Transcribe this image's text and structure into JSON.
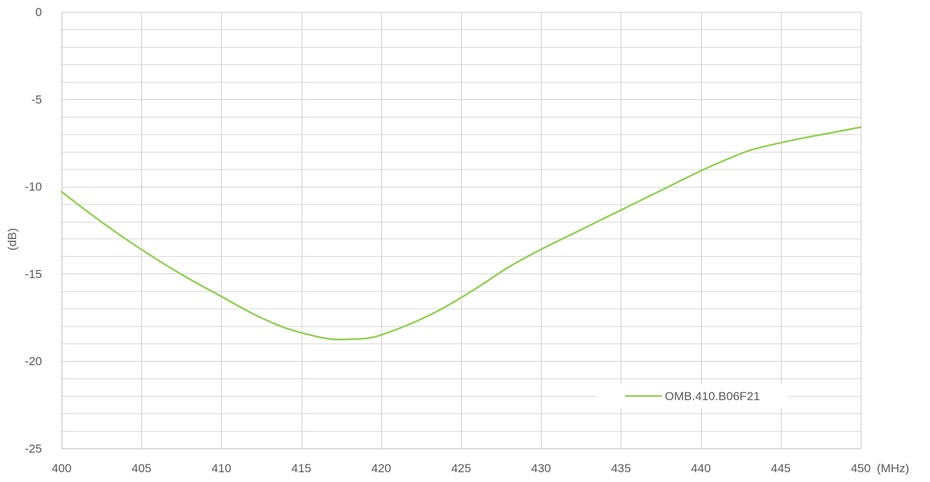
{
  "chart_data": {
    "type": "line",
    "title": "",
    "xlabel": "(MHz)",
    "ylabel": "(dB)",
    "xlim": [
      400,
      450
    ],
    "ylim": [
      -25,
      0
    ],
    "x_major_step": 5,
    "y_major_step": 5,
    "y_minor_step": 1,
    "grid": true,
    "legend_position": "bottom-right",
    "x_ticks": [
      "400",
      "405",
      "410",
      "415",
      "420",
      "425",
      "430",
      "435",
      "440",
      "445",
      "450"
    ],
    "y_ticks": [
      "0",
      "-5",
      "-10",
      "-15",
      "-20",
      "-25"
    ],
    "series": [
      {
        "name": "OMB.410.B06F21",
        "color": "#92d050",
        "x": [
          400,
          402,
          404,
          406,
          408,
          410,
          412,
          414,
          416,
          417,
          418,
          419,
          420,
          422,
          424,
          426,
          428,
          430,
          432,
          434,
          436,
          438,
          440,
          442,
          443,
          444,
          446,
          448,
          450
        ],
        "y": [
          -10.3,
          -11.7,
          -13.0,
          -14.2,
          -15.3,
          -16.3,
          -17.3,
          -18.1,
          -18.6,
          -18.75,
          -18.75,
          -18.7,
          -18.5,
          -17.8,
          -16.9,
          -15.8,
          -14.6,
          -13.6,
          -12.7,
          -11.8,
          -10.9,
          -10.0,
          -9.1,
          -8.3,
          -7.95,
          -7.7,
          -7.3,
          -6.95,
          -6.6
        ]
      }
    ]
  }
}
